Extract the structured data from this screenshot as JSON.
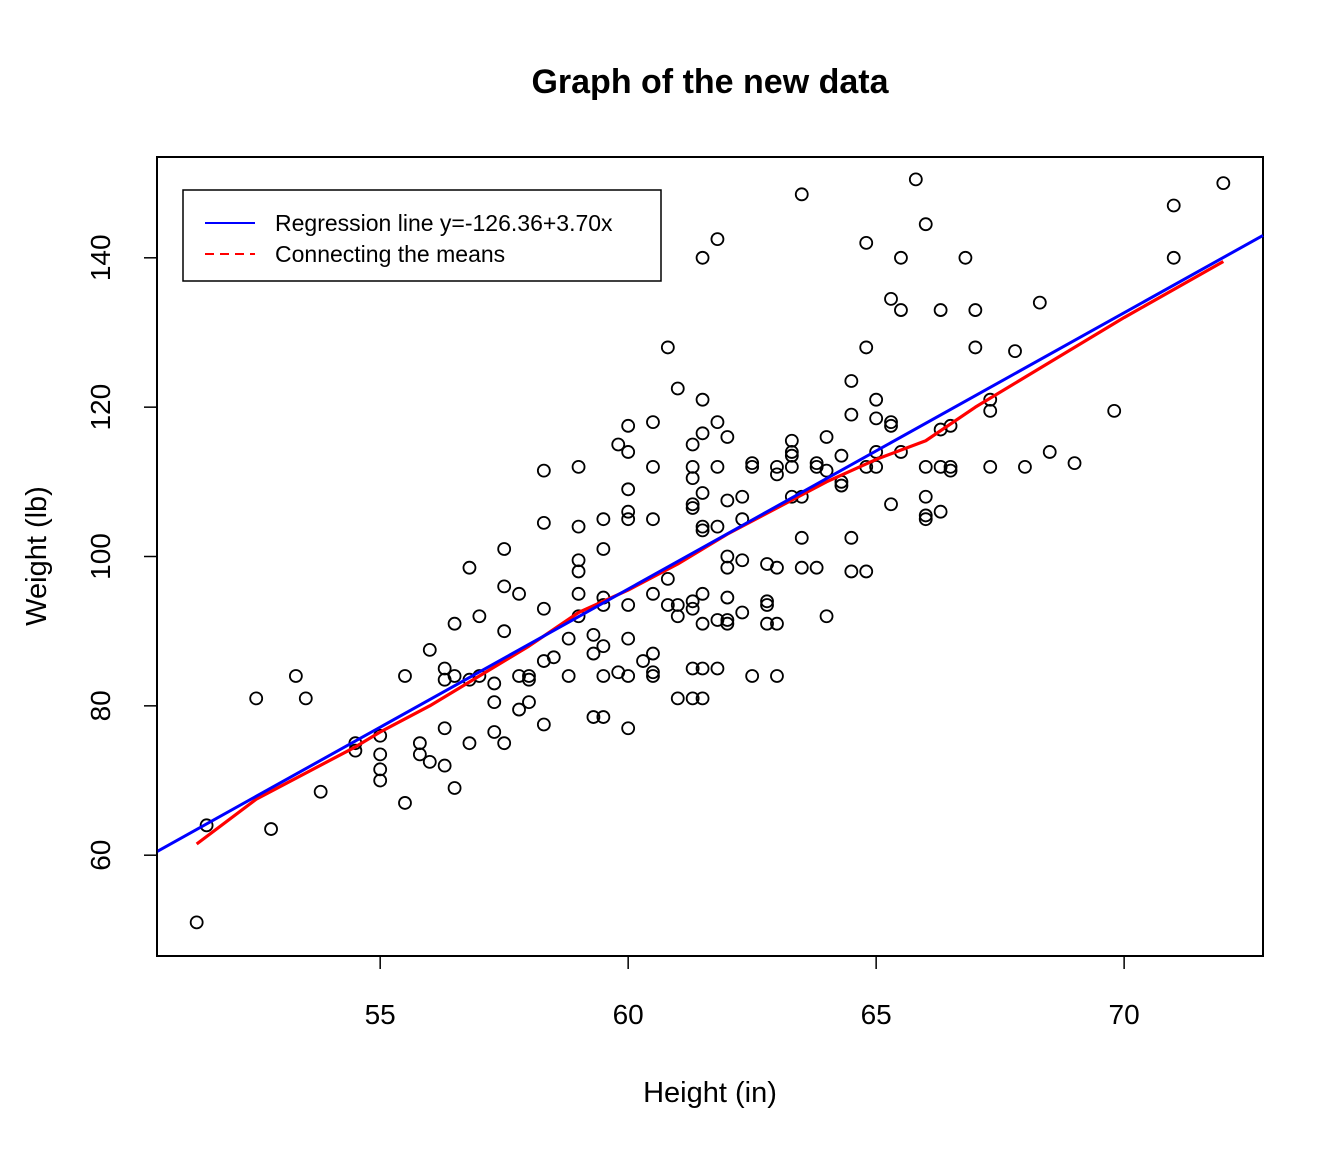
{
  "chart_data": {
    "type": "scatter",
    "title": "Graph of the new data",
    "xlabel": "Height (in)",
    "ylabel": "Weight (lb)",
    "xlim": [
      50.5,
      72.8
    ],
    "ylim": [
      46.5,
      153.5
    ],
    "x_ticks": [
      55,
      60,
      65,
      70
    ],
    "y_ticks": [
      60,
      80,
      100,
      120,
      140
    ],
    "legend_position": "top-left",
    "legend": [
      {
        "label": "Regression line y=-126.36+3.70x",
        "color": "#0000ff",
        "style": "solid"
      },
      {
        "label": "Connecting the means",
        "color": "#ff0000",
        "style": "dashed"
      }
    ],
    "regression": {
      "intercept": -126.36,
      "slope": 3.7,
      "color": "#0000ff"
    },
    "means_line": {
      "color": "#ff0000",
      "x": [
        51.3,
        52.5,
        54.5,
        55,
        56,
        57,
        58,
        59,
        60,
        61,
        62,
        63,
        64,
        65,
        66,
        67,
        68,
        70,
        72
      ],
      "y": [
        61.5,
        67.5,
        74.5,
        76.5,
        80,
        84,
        88,
        92.5,
        95.5,
        99,
        103,
        106.5,
        110,
        113,
        115.5,
        120,
        124,
        132,
        139.5
      ]
    },
    "points": {
      "x": [
        51.3,
        51.5,
        52.5,
        52.8,
        53.3,
        53.5,
        53.8,
        54.5,
        54.5,
        55,
        55,
        55,
        55,
        55.5,
        55.5,
        55.8,
        55.8,
        56,
        56,
        56.3,
        56.3,
        56.3,
        56.3,
        56.5,
        56.5,
        56.5,
        56.8,
        56.8,
        56.8,
        57,
        57,
        57.3,
        57.3,
        57.3,
        57.5,
        57.5,
        57.5,
        57.5,
        57.8,
        57.8,
        57.8,
        58,
        58,
        58,
        58.3,
        58.3,
        58.3,
        58.3,
        58.3,
        58.5,
        58.8,
        58.8,
        59,
        59,
        59,
        59,
        59,
        59,
        59.3,
        59.3,
        59.3,
        59.5,
        59.5,
        59.5,
        59.5,
        59.5,
        59.5,
        59.5,
        59.8,
        59.8,
        60,
        60,
        60,
        60,
        60,
        60,
        60,
        60,
        60,
        60.3,
        60.5,
        60.5,
        60.5,
        60.5,
        60.5,
        60.5,
        60.5,
        60.8,
        60.8,
        60.8,
        61,
        61,
        61,
        61,
        61.3,
        61.3,
        61.3,
        61.3,
        61.3,
        61.3,
        61.3,
        61.3,
        61.3,
        61.5,
        61.5,
        61.5,
        61.5,
        61.5,
        61.5,
        61.5,
        61.5,
        61.5,
        61.5,
        61.8,
        61.8,
        61.8,
        61.8,
        61.8,
        61.8,
        62,
        62,
        62,
        62,
        62,
        62,
        62,
        62.3,
        62.3,
        62.3,
        62.3,
        62.5,
        62.5,
        62.5,
        62.8,
        62.8,
        62.8,
        62.8,
        63,
        63,
        63,
        63,
        63,
        63.3,
        63.3,
        63.3,
        63.3,
        63.3,
        63.5,
        63.5,
        63.5,
        63.5,
        63.8,
        63.8,
        63.8,
        64,
        64,
        64,
        64.3,
        64.3,
        64.3,
        64.5,
        64.5,
        64.5,
        64.5,
        64.8,
        64.8,
        64.8,
        64.8,
        65,
        65,
        65,
        65,
        65.3,
        65.3,
        65.3,
        65.3,
        65.5,
        65.5,
        65.5,
        65.8,
        66,
        66,
        66,
        66,
        66,
        66.3,
        66.3,
        66.3,
        66.3,
        66.5,
        66.5,
        66.5,
        66.8,
        67,
        67,
        67.3,
        67.3,
        67.3,
        67.8,
        68,
        68.3,
        68.5,
        69,
        69.8,
        71,
        71,
        72
      ],
      "y": [
        51,
        64,
        81,
        63.5,
        84,
        81,
        68.5,
        75,
        74,
        76,
        73.5,
        71.5,
        70,
        84,
        67,
        75,
        73.5,
        87.5,
        72.5,
        85,
        83.5,
        77,
        72,
        91,
        84,
        69,
        98.5,
        83.5,
        75,
        92,
        84,
        83,
        80.5,
        76.5,
        101,
        96,
        90,
        75,
        95,
        84,
        79.5,
        84,
        83.5,
        80.5,
        111.5,
        104.5,
        93,
        86,
        77.5,
        86.5,
        89,
        84,
        112,
        104,
        99.5,
        98,
        95,
        92,
        89.5,
        87,
        78.5,
        105,
        101,
        94.5,
        93.5,
        88,
        84,
        78.5,
        115,
        84.5,
        117.5,
        114,
        109,
        106,
        105,
        93.5,
        89,
        84,
        77,
        86,
        118,
        112,
        105,
        95,
        87,
        84.5,
        84,
        128,
        97,
        93.5,
        122.5,
        93.5,
        92,
        81,
        115,
        112,
        110.5,
        107,
        106.5,
        94,
        93,
        85,
        81,
        121,
        116.5,
        108.5,
        104,
        103.5,
        95,
        91,
        85,
        81,
        140,
        142.5,
        118,
        112,
        104,
        91.5,
        85,
        116,
        107.5,
        100,
        98.5,
        94.5,
        91.5,
        91,
        108,
        105,
        99.5,
        92.5,
        112.5,
        112,
        84,
        99,
        94,
        93.5,
        91,
        112,
        111,
        98.5,
        91,
        84,
        115.5,
        114,
        113.5,
        112,
        108,
        148.5,
        108,
        102.5,
        98.5,
        112.5,
        112,
        98.5,
        116,
        111.5,
        92,
        113.5,
        110,
        109.5,
        123.5,
        119,
        102.5,
        98,
        142,
        128,
        112,
        98,
        121,
        118.5,
        114,
        112,
        134.5,
        118,
        117.5,
        107,
        140,
        133,
        114,
        150.5,
        144.5,
        112,
        108,
        105.5,
        105,
        133,
        117,
        112,
        106,
        117.5,
        112,
        111.5,
        140,
        133,
        128,
        121,
        119.5,
        112,
        127.5,
        112,
        134,
        114,
        112.5,
        119.5,
        147,
        140,
        150
      ]
    }
  }
}
